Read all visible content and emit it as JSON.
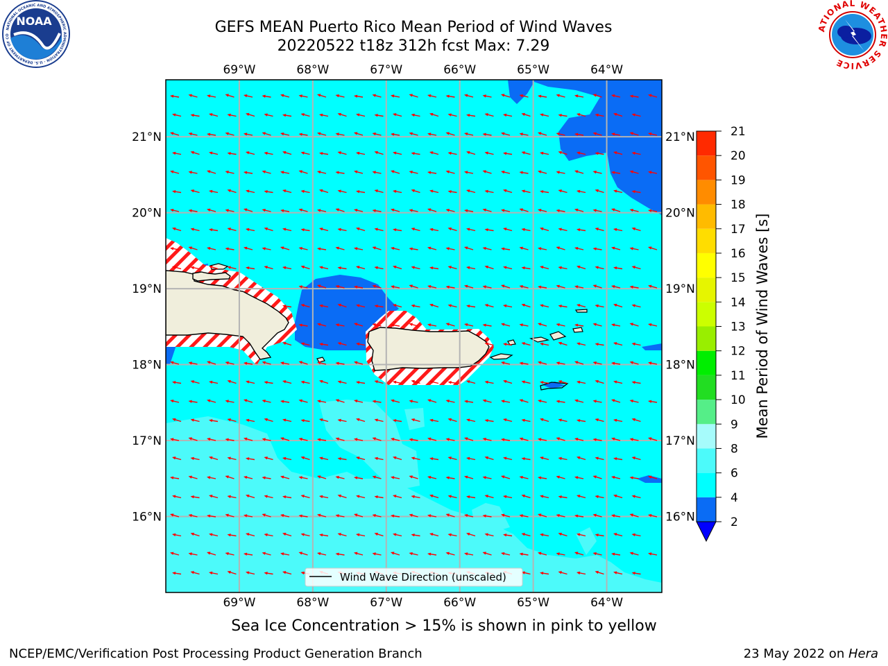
{
  "title_line1": "GEFS MEAN Puerto Rico Mean Period of Wind Waves",
  "title_line2": "20220522 t18z 312h fcst   Max: 7.29",
  "subtitle": "Sea Ice Concentration > 15% is shown in pink to yellow",
  "footer_left": "NCEP/EMC/Verification Post Processing Product Generation Branch",
  "footer_date": "23 May 2022 on ",
  "footer_machine": "Hera",
  "legend_label": "Wind Wave Direction (unscaled)",
  "colorbar": {
    "label": "Mean Period of Wind Waves [s]",
    "ticks": [
      "2",
      "4",
      "6",
      "8",
      "9",
      "10",
      "11",
      "12",
      "13",
      "14",
      "15",
      "16",
      "17",
      "18",
      "19",
      "20",
      "21"
    ],
    "colors": [
      "#0a6cf5",
      "#00ffff",
      "#4cfafa",
      "#a6fbfb",
      "#55ee88",
      "#22dd22",
      "#00ee00",
      "#99ee00",
      "#ccff00",
      "#e6f500",
      "#ffff00",
      "#ffdd00",
      "#ffbb00",
      "#ff8c00",
      "#ff5500",
      "#ff2a00",
      "#ff0000"
    ],
    "under_color": "#0000ff"
  },
  "logos": {
    "left": "NOAA",
    "left_ring": "NATIONAL OCEANIC AND ATMOSPHERIC ADMINISTRATION · U.S. DEPARTMENT OF COMMERCE",
    "right_ring": "NATIONAL WEATHER SERVICE"
  },
  "chart_data": {
    "type": "map",
    "lon_range": [
      -70.0,
      -63.25
    ],
    "lat_range": [
      15.0,
      21.75
    ],
    "lon_ticks": [
      "69°W",
      "68°W",
      "67°W",
      "66°W",
      "65°W",
      "64°W"
    ],
    "lat_ticks": [
      "16°N",
      "17°N",
      "18°N",
      "19°N",
      "20°N",
      "21°N"
    ],
    "lon_values": [
      -69,
      -68,
      -67,
      -66,
      -65,
      -64
    ],
    "lat_values": [
      16,
      17,
      18,
      19,
      20,
      21
    ],
    "grid": true,
    "background_period_class": "4-6",
    "arrow_color": "#ff0000",
    "arrow_direction": "toward west-northwest"
  }
}
